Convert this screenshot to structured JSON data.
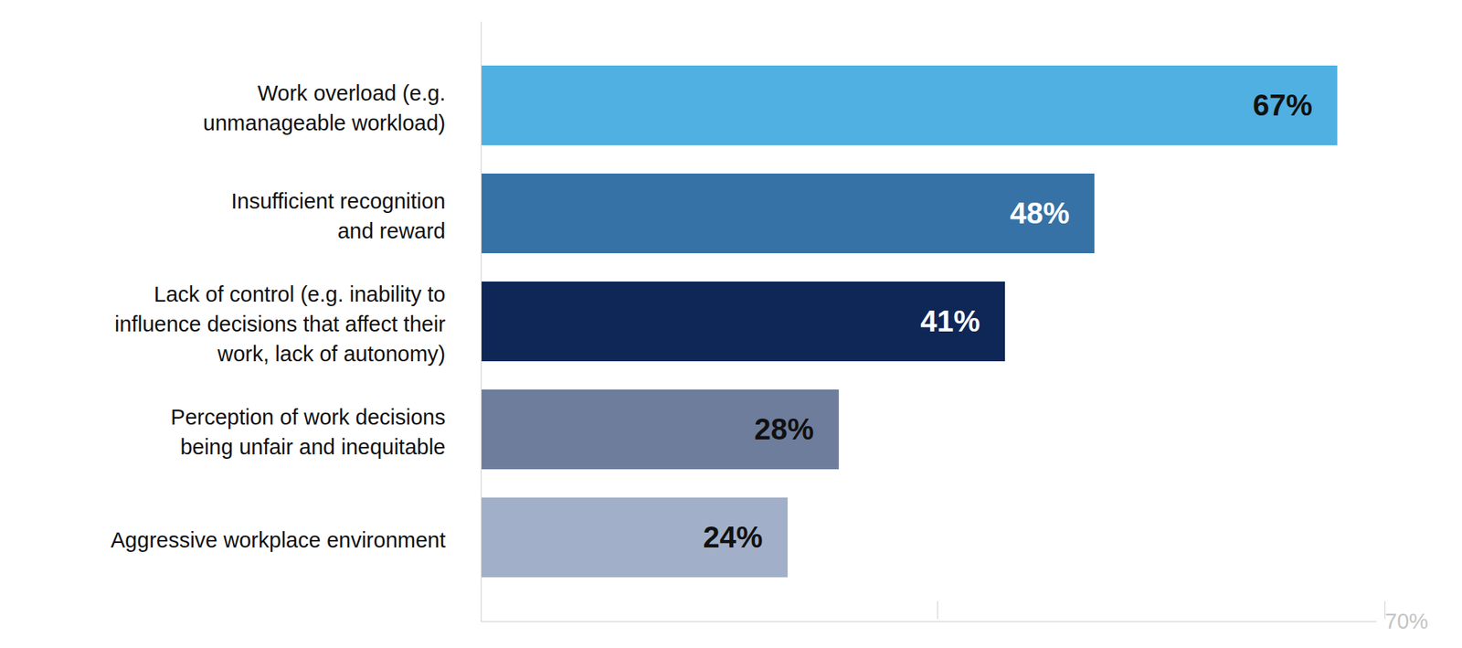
{
  "chart_data": {
    "type": "bar",
    "orientation": "horizontal",
    "categories": [
      "Work overload (e.g.\nunmanageable workload)",
      "Insufficient recognition\nand reward",
      "Lack of control (e.g. inability to\ninfluence decisions that affect their\nwork, lack of autonomy)",
      "Perception of work decisions\nbeing unfair and inequitable",
      "Aggressive workplace environment"
    ],
    "values": [
      67,
      48,
      41,
      28,
      24
    ],
    "value_labels": [
      "67%",
      "48%",
      "41%",
      "28%",
      "24%"
    ],
    "colors": [
      "#50b0e1",
      "#3672a6",
      "#0e2757",
      "#6e7d9c",
      "#a1b0c8"
    ],
    "xlim": [
      0,
      70
    ],
    "xticks": [
      {
        "value": 35,
        "label": null
      },
      {
        "value": 70,
        "label": "70%"
      }
    ],
    "data_labels": true,
    "grid": false
  }
}
